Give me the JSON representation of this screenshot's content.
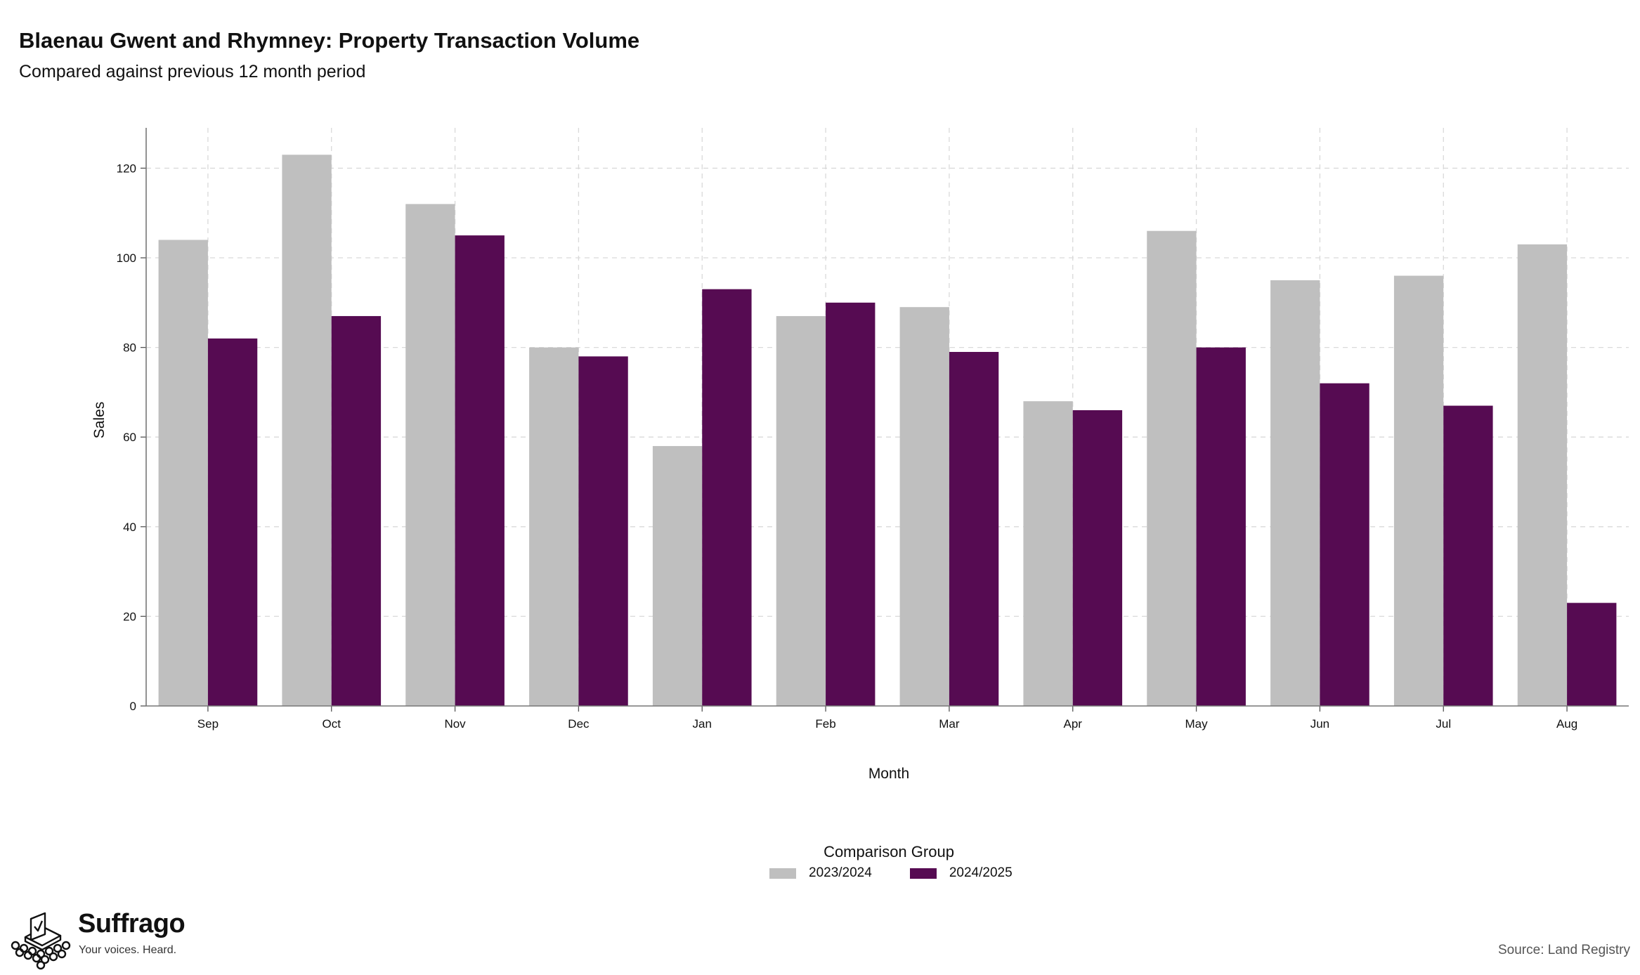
{
  "header": {
    "title": "Blaenau Gwent and Rhymney: Property Transaction Volume",
    "subtitle": "Compared against previous 12 month period"
  },
  "chart_data": {
    "type": "bar",
    "title": "Blaenau Gwent and Rhymney: Property Transaction Volume",
    "subtitle": "Compared against previous 12 month period",
    "xlabel": "Month",
    "ylabel": "Sales",
    "categories": [
      "Sep",
      "Oct",
      "Nov",
      "Dec",
      "Jan",
      "Feb",
      "Mar",
      "Apr",
      "May",
      "Jun",
      "Jul",
      "Aug"
    ],
    "series": [
      {
        "name": "2023/2024",
        "color": "#bfbfbf",
        "values": [
          104,
          123,
          112,
          80,
          58,
          87,
          89,
          68,
          106,
          95,
          96,
          103
        ]
      },
      {
        "name": "2024/2025",
        "color": "#560b52",
        "values": [
          82,
          87,
          105,
          78,
          93,
          90,
          79,
          66,
          80,
          72,
          67,
          23
        ]
      }
    ],
    "ylim": [
      0,
      129
    ],
    "yticks": [
      0,
      20,
      40,
      60,
      80,
      100,
      120
    ],
    "grid": true,
    "legend_title": "Comparison Group",
    "legend_position": "bottom"
  },
  "branding": {
    "logo_name": "Suffrago",
    "logo_tagline": "Your voices. Heard.",
    "logo_icon": "ballot-box-icon"
  },
  "footer": {
    "source": "Source: Land Registry"
  }
}
